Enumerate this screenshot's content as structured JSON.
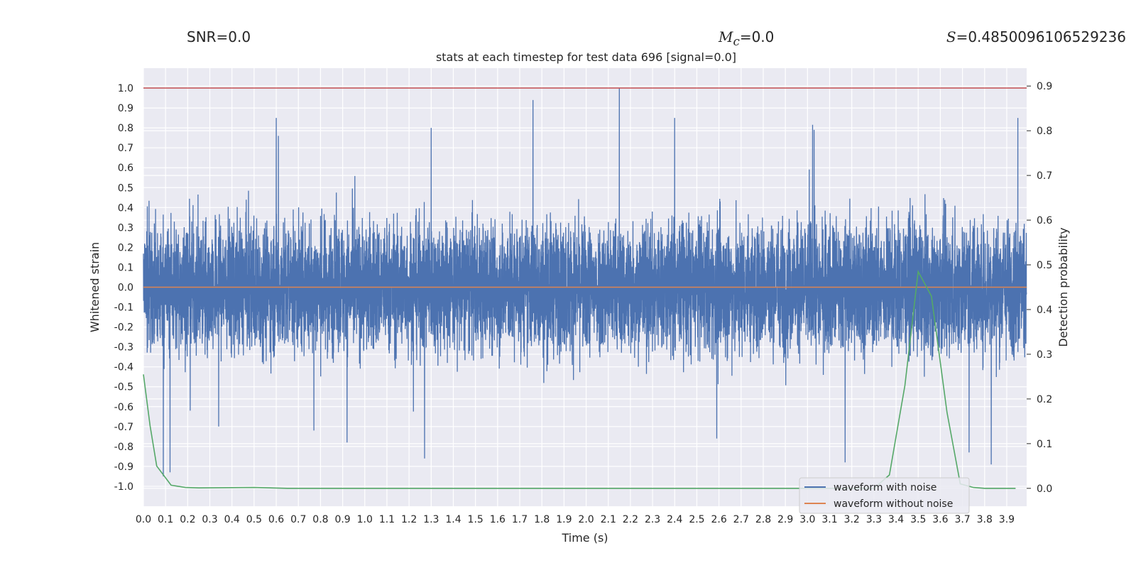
{
  "header": {
    "snr": "SNR=0.0",
    "mc_symbol": "M",
    "mc_subscript": "c",
    "mc_value": "=0.0",
    "score_symbol": "S",
    "score_value": "=0.4850096106529236"
  },
  "chart_data": {
    "type": "line",
    "title": "stats at each timestep for test data 696 [signal=0.0]",
    "xlabel": "Time (s)",
    "ylabel": "Whitened strain",
    "y2label": "Detection probability",
    "xlim": [
      0.0,
      3.99
    ],
    "ylim": [
      -1.1,
      1.1
    ],
    "y2lim": [
      -0.04,
      0.94
    ],
    "x_ticks": [
      "0.0",
      "0.1",
      "0.2",
      "0.3",
      "0.4",
      "0.5",
      "0.6",
      "0.7",
      "0.8",
      "0.9",
      "1.0",
      "1.1",
      "1.2",
      "1.3",
      "1.4",
      "1.5",
      "1.6",
      "1.7",
      "1.8",
      "1.9",
      "2.0",
      "2.1",
      "2.2",
      "2.3",
      "2.4",
      "2.5",
      "2.6",
      "2.7",
      "2.8",
      "2.9",
      "3.0",
      "3.1",
      "3.2",
      "3.3",
      "3.4",
      "3.5",
      "3.6",
      "3.7",
      "3.8",
      "3.9"
    ],
    "y_ticks": [
      "1.0",
      "0.9",
      "0.8",
      "0.7",
      "0.6",
      "0.5",
      "0.4",
      "0.3",
      "0.2",
      "0.1",
      "0.0",
      "-0.1",
      "-0.2",
      "-0.3",
      "-0.4",
      "-0.5",
      "-0.6",
      "-0.7",
      "-0.8",
      "-0.9",
      "-1.0"
    ],
    "y2_ticks": [
      "0.9",
      "0.8",
      "0.7",
      "0.6",
      "0.5",
      "0.4",
      "0.3",
      "0.2",
      "0.1",
      "0.0"
    ],
    "grid": true,
    "legend_position": "lower-right",
    "colors": {
      "background": "#eaeaf2",
      "grid": "#ffffff",
      "noisy": "#4c72b0",
      "clean": "#dd8452",
      "probability": "#55a868",
      "threshold": "#c44e52"
    },
    "series": [
      {
        "name": "waveform with noise",
        "axis": "left",
        "style": "dense noisy signal",
        "sample_rate_hz": 2048,
        "typical_abs": 0.3,
        "peaks": [
          {
            "x": 0.6,
            "y": 0.85
          },
          {
            "x": 0.61,
            "y": 0.76
          },
          {
            "x": 1.3,
            "y": 0.8
          },
          {
            "x": 1.76,
            "y": 0.94
          },
          {
            "x": 2.15,
            "y": 1.0
          },
          {
            "x": 2.4,
            "y": 0.85
          },
          {
            "x": 3.03,
            "y": 0.79
          },
          {
            "x": 3.95,
            "y": 0.85
          },
          {
            "x": 0.09,
            "y": -0.95
          },
          {
            "x": 0.12,
            "y": -0.93
          },
          {
            "x": 0.92,
            "y": -0.78
          },
          {
            "x": 1.27,
            "y": -0.86
          },
          {
            "x": 3.17,
            "y": -0.88
          },
          {
            "x": 3.83,
            "y": -0.89
          },
          {
            "x": 3.73,
            "y": -0.83
          },
          {
            "x": 2.59,
            "y": -0.76
          },
          {
            "x": 0.34,
            "y": -0.7
          },
          {
            "x": 0.77,
            "y": -0.72
          }
        ]
      },
      {
        "name": "waveform without noise",
        "axis": "left",
        "x": [
          0.0,
          3.99
        ],
        "y": [
          0.0,
          0.0
        ]
      },
      {
        "name": "",
        "axis": "left",
        "x": [
          0.0,
          3.99
        ],
        "y": [
          1.0,
          1.0
        ]
      },
      {
        "name": "",
        "axis": "right",
        "x": [
          0.0,
          0.03,
          0.06,
          0.125,
          0.19,
          0.25,
          0.5,
          0.65,
          1.0,
          2.0,
          3.0,
          3.3,
          3.37,
          3.44,
          3.5,
          3.56,
          3.63,
          3.69,
          3.75,
          3.8,
          3.94
        ],
        "y": [
          0.255,
          0.14,
          0.05,
          0.007,
          0.002,
          0.001,
          0.002,
          0.0,
          0.0,
          0.0,
          0.0,
          0.0,
          0.03,
          0.23,
          0.485,
          0.43,
          0.17,
          0.01,
          0.002,
          0.0,
          0.0
        ]
      }
    ]
  }
}
